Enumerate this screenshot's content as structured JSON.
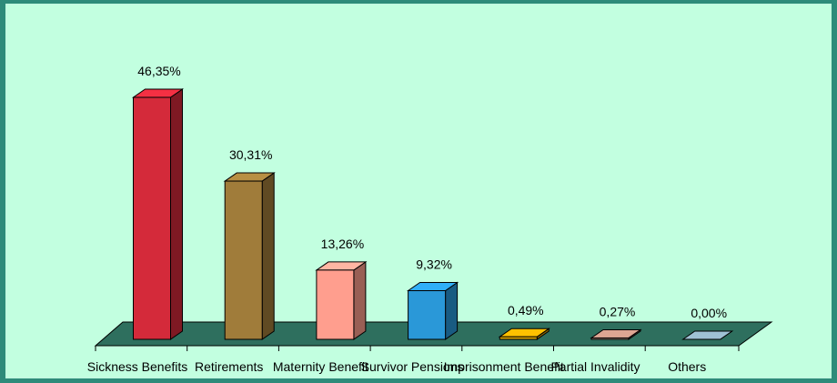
{
  "chart_data": {
    "type": "bar",
    "categories": [
      "Sickness Benefits",
      "Retirements",
      "Maternity Benefit",
      "Survivor Pensions",
      "Imprisonment Benefit",
      "Partial Invalidity",
      "Others"
    ],
    "values": [
      46.35,
      30.31,
      13.26,
      9.32,
      0.49,
      0.27,
      0.0
    ],
    "value_labels": [
      "46,35%",
      "30,31%",
      "13,26%",
      "9,32%",
      "0,49%",
      "0,27%",
      "0,00%"
    ],
    "colors": [
      "#d42a3a",
      "#a07c3a",
      "#ff9e8e",
      "#2a98d8",
      "#e0a800",
      "#c09080",
      "#8aa8b8"
    ],
    "floor_color": "#2e6f5e",
    "ylim": [
      0,
      50
    ]
  }
}
